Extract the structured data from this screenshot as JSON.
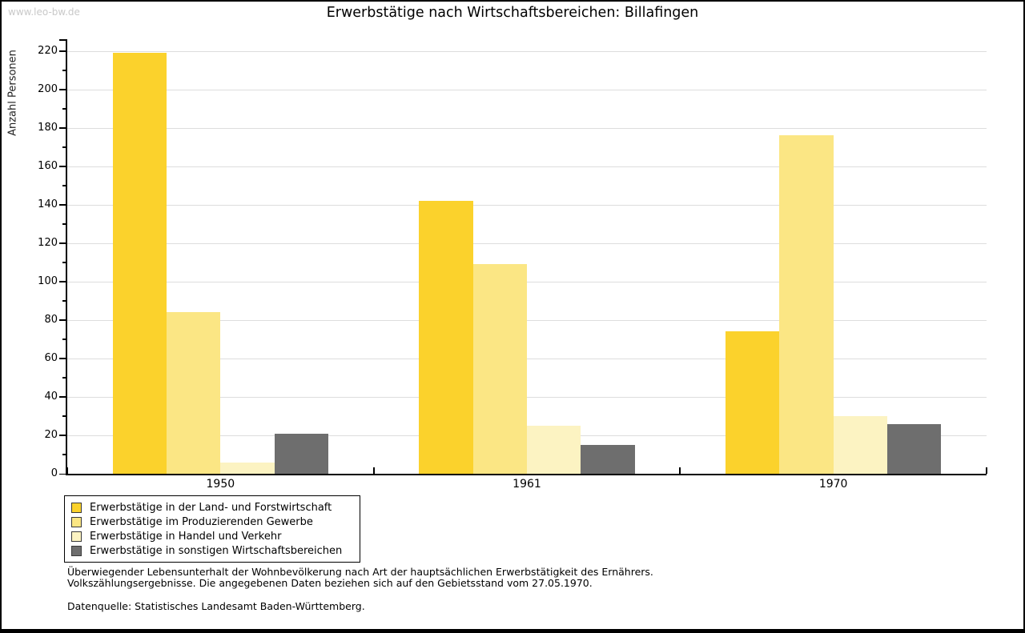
{
  "watermark": "www.leo-bw.de",
  "title": "Erwerbstätige nach Wirtschaftsbereichen: Billafingen",
  "chart_data": {
    "type": "bar",
    "title": "Erwerbstätige nach Wirtschaftsbereichen: Billafingen",
    "xlabel": "",
    "ylabel": "Anzahl Personen",
    "categories": [
      "1950",
      "1961",
      "1970"
    ],
    "series": [
      {
        "name": "Erwerbstätige in der Land- und Forstwirtschaft",
        "color": "#FBD22C",
        "values": [
          219,
          142,
          74
        ]
      },
      {
        "name": "Erwerbstätige im Produzierenden Gewerbe",
        "color": "#FBE684",
        "values": [
          84,
          109,
          176
        ]
      },
      {
        "name": "Erwerbstätige in Handel und Verkehr",
        "color": "#FCF3C2",
        "values": [
          6,
          25,
          30
        ]
      },
      {
        "name": "Erwerbstätige in sonstigen Wirtschaftsbereichen",
        "color": "#6E6E6E",
        "values": [
          21,
          15,
          26
        ]
      }
    ],
    "ylim": [
      0,
      220
    ],
    "ytick_step": 20,
    "yminor_step": 10,
    "grid": "horizontal-major",
    "gridline_color": "#DDDDDD",
    "axis_color": "#000000",
    "legend_position": "bottom-left"
  },
  "footer": {
    "note_line1": "Überwiegender Lebensunterhalt der Wohnbevölkerung nach Art der hauptsächlichen Erwerbstätigkeit des Ernährers.",
    "note_line2": "Volkszählungsergebnisse. Die angegebenen Daten beziehen sich auf den Gebietsstand vom 27.05.1970.",
    "source": "Datenquelle: Statistisches Landesamt Baden-Württemberg."
  }
}
